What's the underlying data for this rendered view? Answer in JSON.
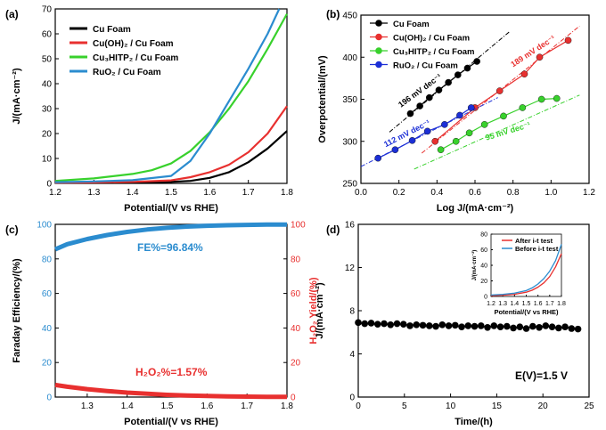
{
  "chart_data": [
    {
      "panel": "(a)",
      "type": "line",
      "xlabel": "Potential/(V vs RHE)",
      "ylabel": "J/(mA·cm⁻²)",
      "xlim": [
        1.2,
        1.8
      ],
      "ylim": [
        0,
        70
      ],
      "xticks": [
        1.2,
        1.3,
        1.4,
        1.5,
        1.6,
        1.7,
        1.8
      ],
      "yticks": [
        0,
        10,
        20,
        30,
        40,
        50,
        60,
        70
      ],
      "xtick_labels": [
        "1.2",
        "1.3",
        "1.4",
        "1.5",
        "1.6",
        "1.7",
        "1.8"
      ],
      "ytick_labels": [
        "0",
        "10",
        "20",
        "30",
        "40",
        "50",
        "60",
        "70"
      ],
      "legend_position": "top-left",
      "series": [
        {
          "name": "Cu Foam",
          "color": "#000000",
          "x": [
            1.2,
            1.3,
            1.4,
            1.5,
            1.55,
            1.6,
            1.65,
            1.7,
            1.75,
            1.8
          ],
          "y": [
            0.2,
            0.3,
            0.4,
            0.6,
            1.0,
            2.2,
            4.5,
            8.5,
            14.0,
            21.0
          ]
        },
        {
          "name": "Cu(OH)₂ / Cu Foam",
          "color": "#e8302f",
          "x": [
            1.2,
            1.3,
            1.4,
            1.5,
            1.55,
            1.6,
            1.65,
            1.7,
            1.75,
            1.8
          ],
          "y": [
            0.3,
            0.4,
            0.6,
            1.2,
            2.5,
            4.5,
            7.5,
            12.5,
            20.0,
            31.0
          ]
        },
        {
          "name": "Cu₃HITP₂ / Cu Foam",
          "color": "#38d12c",
          "x": [
            1.2,
            1.3,
            1.4,
            1.45,
            1.5,
            1.55,
            1.6,
            1.65,
            1.7,
            1.75,
            1.8
          ],
          "y": [
            1.0,
            2.0,
            3.8,
            5.3,
            8.0,
            13.0,
            20.5,
            30.0,
            41.0,
            54.0,
            68.0
          ]
        },
        {
          "name": "RuO₂ / Cu Foam",
          "color": "#2b8ccf",
          "x": [
            1.2,
            1.3,
            1.4,
            1.5,
            1.55,
            1.6,
            1.65,
            1.7,
            1.75,
            1.78
          ],
          "y": [
            0.5,
            0.8,
            1.3,
            3.0,
            9.0,
            20.0,
            33.0,
            46.0,
            60.0,
            70.0
          ]
        }
      ]
    },
    {
      "panel": "(b)",
      "type": "scatter",
      "xlabel": "Log J/(mA·cm⁻²)",
      "ylabel": "Overpotential/(mV)",
      "xlim": [
        0.0,
        1.2
      ],
      "ylim": [
        250,
        450
      ],
      "xticks": [
        0.0,
        0.2,
        0.4,
        0.6,
        0.8,
        1.0,
        1.2
      ],
      "yticks": [
        250,
        300,
        350,
        400,
        450
      ],
      "xtick_labels": [
        "0.0",
        "0.2",
        "0.4",
        "0.6",
        "0.8",
        "1.0",
        "1.2"
      ],
      "ytick_labels": [
        "250",
        "300",
        "350",
        "400",
        "450"
      ],
      "legend_position": "top-left",
      "series": [
        {
          "name": "Cu Foam",
          "color": "#000000",
          "x": [
            0.26,
            0.31,
            0.36,
            0.41,
            0.46,
            0.51,
            0.56,
            0.61
          ],
          "y": [
            333,
            342,
            352,
            361,
            370,
            379,
            387,
            395
          ],
          "fit_x": [
            0.15,
            0.78
          ],
          "fit_y": [
            311,
            430
          ]
        },
        {
          "name": "Cu(OH)₂ / Cu Foam",
          "color": "#e8302f",
          "x": [
            0.39,
            0.6,
            0.73,
            0.86,
            0.94,
            1.09
          ],
          "y": [
            300,
            340,
            360,
            380,
            400,
            420
          ],
          "fit_x": [
            0.32,
            1.15
          ],
          "fit_y": [
            286,
            437
          ]
        },
        {
          "name": "Cu₃HITP₂ / Cu Foam",
          "color": "#38d12c",
          "x": [
            0.42,
            0.5,
            0.57,
            0.65,
            0.75,
            0.85,
            0.95,
            1.03
          ],
          "y": [
            290,
            300,
            310,
            320,
            330,
            340,
            350,
            351
          ],
          "fit_x": [
            0.28,
            1.15
          ],
          "fit_y": [
            267,
            355
          ]
        },
        {
          "name": "RuO₂ / Cu Foam",
          "color": "#1c2fd6",
          "x": [
            0.09,
            0.18,
            0.27,
            0.35,
            0.44,
            0.52,
            0.58
          ],
          "y": [
            280,
            290,
            301,
            312,
            320,
            331,
            340
          ],
          "fit_x": [
            0.0,
            0.72
          ],
          "fit_y": [
            270,
            352
          ]
        }
      ],
      "annotations": [
        {
          "text": "196 mV dec⁻¹",
          "color": "#000000"
        },
        {
          "text": "189 mV dec⁻¹",
          "color": "#e8302f"
        },
        {
          "text": "112 mV dec⁻¹",
          "color": "#1c2fd6"
        },
        {
          "text": "95 mV dec⁻¹",
          "color": "#38d12c"
        }
      ]
    },
    {
      "panel": "(c)",
      "type": "line",
      "xlabel": "Potential/(V vs RHE)",
      "ylabel_left": "Faraday Efficiency/(%)",
      "ylabel_right": "H₂O₂ Yield/(%)",
      "xlim": [
        1.22,
        1.8
      ],
      "ylim": [
        0,
        100
      ],
      "xticks": [
        1.3,
        1.4,
        1.5,
        1.6,
        1.7,
        1.8
      ],
      "yticks": [
        0,
        20,
        40,
        60,
        80,
        100
      ],
      "xtick_labels": [
        "1.3",
        "1.4",
        "1.5",
        "1.6",
        "1.7",
        "1.8"
      ],
      "ytick_labels": [
        "0",
        "20",
        "40",
        "60",
        "80",
        "100"
      ],
      "series": [
        {
          "name": "FE",
          "color": "#2b8ccf",
          "axis": "left",
          "x": [
            1.22,
            1.25,
            1.3,
            1.35,
            1.4,
            1.45,
            1.5,
            1.55,
            1.6,
            1.65,
            1.7,
            1.75,
            1.8
          ],
          "y": [
            85.5,
            88.5,
            91.5,
            93.8,
            95.6,
            97.0,
            98.0,
            98.7,
            99.2,
            99.5,
            99.7,
            99.85,
            99.9
          ]
        },
        {
          "name": "H2O2",
          "color": "#e8302f",
          "axis": "right",
          "x": [
            1.22,
            1.25,
            1.3,
            1.35,
            1.4,
            1.45,
            1.5,
            1.55,
            1.6,
            1.65,
            1.7,
            1.75,
            1.8
          ],
          "y": [
            7.0,
            6.0,
            4.6,
            3.5,
            2.6,
            1.9,
            1.3,
            0.9,
            0.6,
            0.4,
            0.25,
            0.15,
            0.1
          ]
        }
      ],
      "annotations": [
        {
          "text": "FE%=96.84%",
          "color": "#2b8ccf"
        },
        {
          "text": "H₂O₂%=1.57%",
          "color": "#e8302f"
        }
      ]
    },
    {
      "panel": "(d)",
      "type": "scatter",
      "xlabel": "Time/(h)",
      "ylabel": "J/(mA·cm⁻²)",
      "xlim": [
        0,
        25
      ],
      "ylim": [
        0,
        16
      ],
      "xticks": [
        0,
        5,
        10,
        15,
        20,
        25
      ],
      "yticks": [
        0,
        4,
        8,
        12,
        16
      ],
      "xtick_labels": [
        "0",
        "5",
        "10",
        "15",
        "20",
        "25"
      ],
      "ytick_labels": [
        "0",
        "4",
        "8",
        "12",
        "16"
      ],
      "series": [
        {
          "name": "J",
          "color": "#000000",
          "x": [
            0,
            0.7,
            1.4,
            2.1,
            2.8,
            3.5,
            4.2,
            4.9,
            5.6,
            6.3,
            7,
            7.7,
            8.4,
            9.1,
            9.8,
            10.5,
            11.2,
            11.9,
            12.6,
            13.3,
            14,
            14.7,
            15.4,
            16.1,
            16.8,
            17.5,
            18.2,
            18.9,
            19.6,
            20.3,
            21,
            21.7,
            22.4,
            23.1,
            23.8
          ],
          "y": [
            6.9,
            6.8,
            6.85,
            6.75,
            6.8,
            6.7,
            6.8,
            6.75,
            6.6,
            6.7,
            6.65,
            6.6,
            6.55,
            6.7,
            6.6,
            6.65,
            6.5,
            6.6,
            6.55,
            6.6,
            6.45,
            6.6,
            6.5,
            6.55,
            6.4,
            6.5,
            6.35,
            6.55,
            6.45,
            6.6,
            6.5,
            6.4,
            6.5,
            6.35,
            6.3
          ]
        }
      ],
      "annotations": [
        {
          "text": "E(V)=1.5 V",
          "color": "#000000"
        }
      ],
      "inset": {
        "type": "line",
        "xlabel": "Potential/(V vs RHE)",
        "ylabel": "J/(mA·cm⁻²)",
        "xlim": [
          1.2,
          1.8
        ],
        "ylim": [
          0,
          80
        ],
        "xticks": [
          1.2,
          1.3,
          1.4,
          1.5,
          1.6,
          1.7,
          1.8
        ],
        "yticks": [
          0,
          20,
          40,
          60,
          80
        ],
        "xtick_labels": [
          "1.2",
          "1.3",
          "1.4",
          "1.5",
          "1.6",
          "1.7",
          "1.8"
        ],
        "ytick_labels": [
          "0",
          "20",
          "40",
          "60",
          "80"
        ],
        "legend_position": "top-left",
        "series": [
          {
            "name": "After i-t test",
            "color": "#e8302f",
            "x": [
              1.2,
              1.3,
              1.4,
              1.5,
              1.55,
              1.6,
              1.65,
              1.7,
              1.75,
              1.8
            ],
            "y": [
              1.0,
              1.6,
              2.8,
              5.5,
              8.0,
              12.0,
              17.5,
              25.5,
              38.0,
              55.0
            ]
          },
          {
            "name": "Before i-t test",
            "color": "#2b8ccf",
            "x": [
              1.2,
              1.3,
              1.4,
              1.5,
              1.55,
              1.6,
              1.65,
              1.7,
              1.75,
              1.8
            ],
            "y": [
              1.8,
              2.8,
              4.2,
              7.5,
              11.0,
              16.0,
              23.0,
              32.5,
              46.0,
              67.0
            ]
          }
        ]
      }
    }
  ]
}
